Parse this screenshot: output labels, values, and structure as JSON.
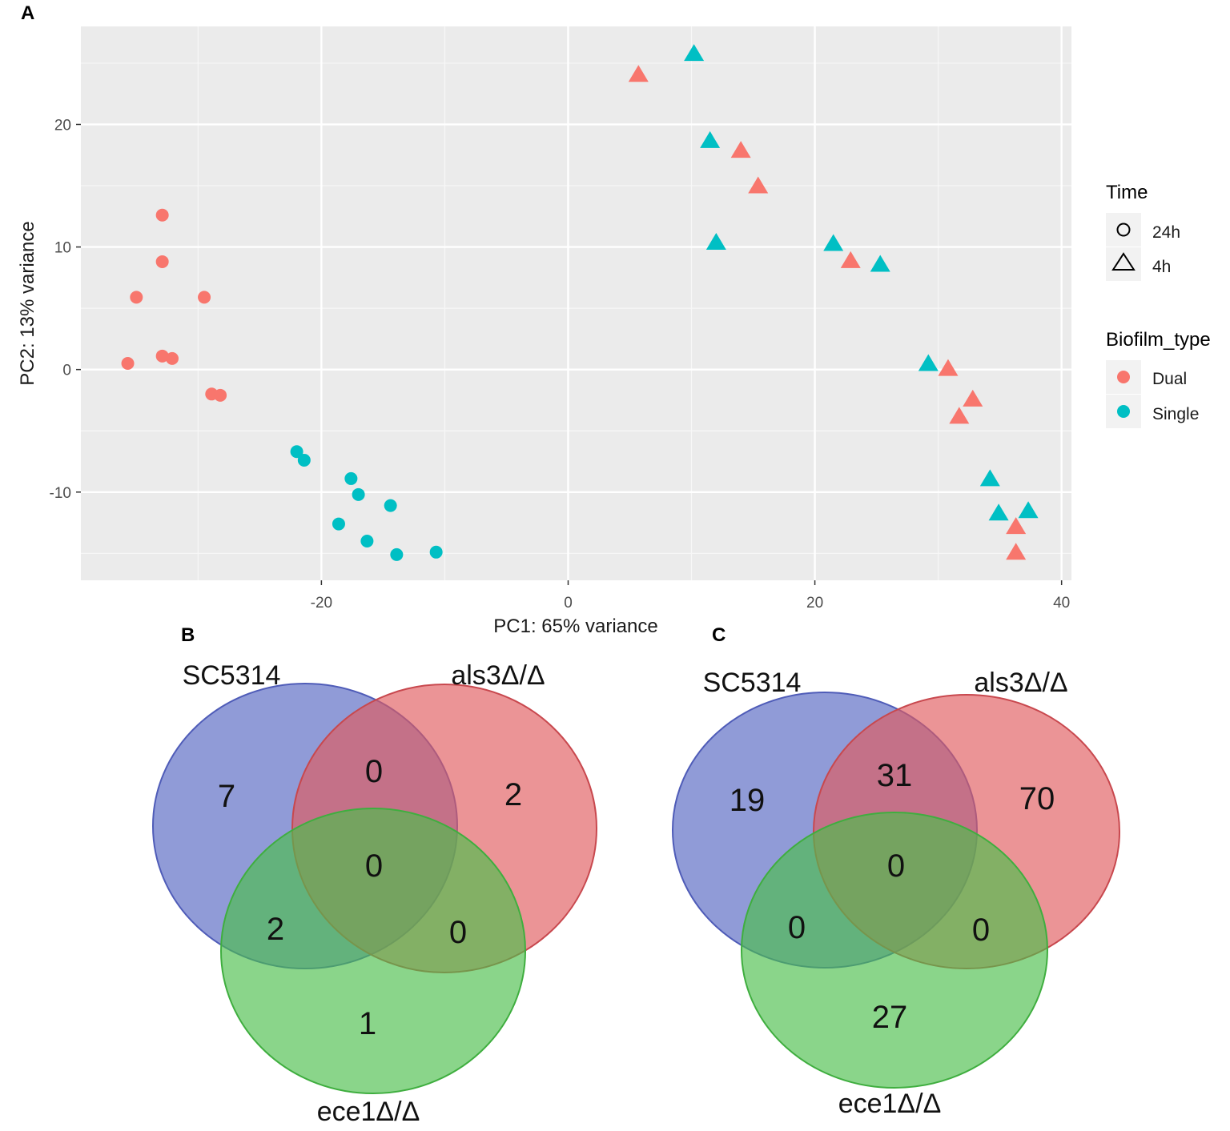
{
  "panels": {
    "a": {
      "letter": "A"
    },
    "b": {
      "letter": "B"
    },
    "c": {
      "letter": "C"
    }
  },
  "chart_data": [
    {
      "type": "scatter",
      "panel": "A",
      "title": "",
      "xlabel": "PC1: 65% variance",
      "ylabel": "PC2: 13% variance",
      "xlim": [
        -39.5,
        40.8
      ],
      "ylim": [
        -17.2,
        28.0
      ],
      "xticks": [
        -20,
        0,
        20,
        40
      ],
      "yticks": [
        -10,
        0,
        10,
        20
      ],
      "grid": true,
      "legend_position": "right",
      "legend": {
        "time": {
          "title": "Time",
          "entries": [
            {
              "label": "24h",
              "shape": "circle"
            },
            {
              "label": "4h",
              "shape": "triangle"
            }
          ]
        },
        "biofilm": {
          "title": "Biofilm_type",
          "entries": [
            {
              "label": "Dual",
              "color": "#F8766D"
            },
            {
              "label": "Single",
              "color": "#00BFC4"
            }
          ]
        }
      },
      "colors": {
        "Dual": "#F8766D",
        "Single": "#00BFC4"
      },
      "points": [
        {
          "x": -35.7,
          "y": 0.5,
          "time": "24h",
          "biofilm": "Dual"
        },
        {
          "x": -35.0,
          "y": 5.9,
          "time": "24h",
          "biofilm": "Dual"
        },
        {
          "x": -32.9,
          "y": 12.6,
          "time": "24h",
          "biofilm": "Dual"
        },
        {
          "x": -32.9,
          "y": 8.8,
          "time": "24h",
          "biofilm": "Dual"
        },
        {
          "x": -32.9,
          "y": 1.1,
          "time": "24h",
          "biofilm": "Dual"
        },
        {
          "x": -32.1,
          "y": 0.9,
          "time": "24h",
          "biofilm": "Dual"
        },
        {
          "x": -29.5,
          "y": 5.9,
          "time": "24h",
          "biofilm": "Dual"
        },
        {
          "x": -28.9,
          "y": -2.0,
          "time": "24h",
          "biofilm": "Dual"
        },
        {
          "x": -28.2,
          "y": -2.1,
          "time": "24h",
          "biofilm": "Dual"
        },
        {
          "x": -22.0,
          "y": -6.7,
          "time": "24h",
          "biofilm": "Single"
        },
        {
          "x": -21.4,
          "y": -7.4,
          "time": "24h",
          "biofilm": "Single"
        },
        {
          "x": -17.6,
          "y": -8.9,
          "time": "24h",
          "biofilm": "Single"
        },
        {
          "x": -17.0,
          "y": -10.2,
          "time": "24h",
          "biofilm": "Single"
        },
        {
          "x": -14.4,
          "y": -11.1,
          "time": "24h",
          "biofilm": "Single"
        },
        {
          "x": -18.6,
          "y": -12.6,
          "time": "24h",
          "biofilm": "Single"
        },
        {
          "x": -16.3,
          "y": -14.0,
          "time": "24h",
          "biofilm": "Single"
        },
        {
          "x": -13.9,
          "y": -15.1,
          "time": "24h",
          "biofilm": "Single"
        },
        {
          "x": -10.7,
          "y": -14.9,
          "time": "24h",
          "biofilm": "Single"
        },
        {
          "x": 5.7,
          "y": 24.1,
          "time": "4h",
          "biofilm": "Dual"
        },
        {
          "x": 14.0,
          "y": 17.9,
          "time": "4h",
          "biofilm": "Dual"
        },
        {
          "x": 15.4,
          "y": 15.0,
          "time": "4h",
          "biofilm": "Dual"
        },
        {
          "x": 22.9,
          "y": 8.9,
          "time": "4h",
          "biofilm": "Dual"
        },
        {
          "x": 30.8,
          "y": 0.1,
          "time": "4h",
          "biofilm": "Dual"
        },
        {
          "x": 32.8,
          "y": -2.4,
          "time": "4h",
          "biofilm": "Dual"
        },
        {
          "x": 31.7,
          "y": -3.8,
          "time": "4h",
          "biofilm": "Dual"
        },
        {
          "x": 36.3,
          "y": -12.8,
          "time": "4h",
          "biofilm": "Dual"
        },
        {
          "x": 36.3,
          "y": -14.9,
          "time": "4h",
          "biofilm": "Dual"
        },
        {
          "x": 10.2,
          "y": 25.8,
          "time": "4h",
          "biofilm": "Single"
        },
        {
          "x": 11.5,
          "y": 18.7,
          "time": "4h",
          "biofilm": "Single"
        },
        {
          "x": 12.0,
          "y": 10.4,
          "time": "4h",
          "biofilm": "Single"
        },
        {
          "x": 21.5,
          "y": 10.3,
          "time": "4h",
          "biofilm": "Single"
        },
        {
          "x": 25.3,
          "y": 8.6,
          "time": "4h",
          "biofilm": "Single"
        },
        {
          "x": 29.2,
          "y": 0.5,
          "time": "4h",
          "biofilm": "Single"
        },
        {
          "x": 34.2,
          "y": -8.9,
          "time": "4h",
          "biofilm": "Single"
        },
        {
          "x": 34.9,
          "y": -11.7,
          "time": "4h",
          "biofilm": "Single"
        },
        {
          "x": 37.3,
          "y": -11.5,
          "time": "4h",
          "biofilm": "Single"
        }
      ]
    },
    {
      "type": "venn",
      "panel": "B",
      "sets": [
        {
          "label": "SC5314",
          "color": "#5465C2"
        },
        {
          "label": "als3Δ/Δ",
          "color": "#E05A5E"
        },
        {
          "label": "ece1Δ/Δ",
          "color": "#4CBF4C"
        }
      ],
      "regions": {
        "SC5314_only": "7",
        "als3_only": "2",
        "ece1_only": "1",
        "SC5314_als3": "0",
        "SC5314_ece1": "2",
        "als3_ece1": "0",
        "all_three": "0"
      }
    },
    {
      "type": "venn",
      "panel": "C",
      "sets": [
        {
          "label": "SC5314",
          "color": "#5465C2"
        },
        {
          "label": "als3Δ/Δ",
          "color": "#E05A5E"
        },
        {
          "label": "ece1Δ/Δ",
          "color": "#4CBF4C"
        }
      ],
      "regions": {
        "SC5314_only": "19",
        "als3_only": "70",
        "ece1_only": "27",
        "SC5314_als3": "31",
        "SC5314_ece1": "0",
        "als3_ece1": "0",
        "all_three": "0"
      }
    }
  ]
}
